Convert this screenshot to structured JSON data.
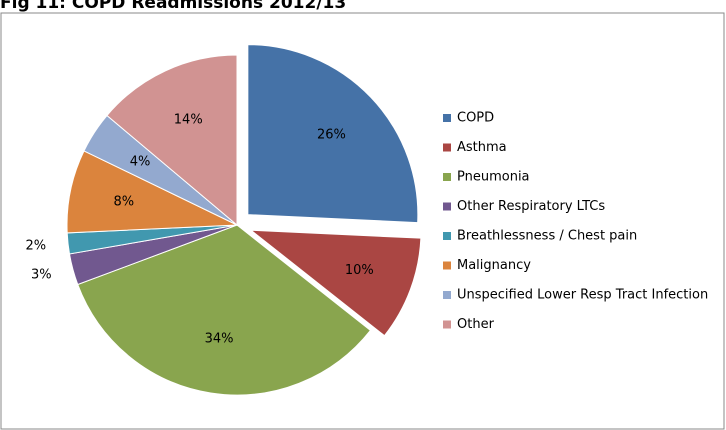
{
  "chart_data": {
    "type": "pie",
    "title": "Fig 11: COPD Readmissions 2012/13",
    "categories": [
      "COPD",
      "Asthma",
      "Pneumonia",
      "Other Respiratory LTCs",
      "Breathlessness / Chest pain",
      "Malignancy",
      "Unspecified Lower Resp Tract Infection",
      "Other"
    ],
    "values": [
      26,
      10,
      34,
      3,
      2,
      8,
      4,
      14
    ],
    "value_labels": [
      "26%",
      "10%",
      "34%",
      "3%",
      "2%",
      "8%",
      "4%",
      "14%"
    ],
    "colors": [
      "#4572a7",
      "#aa4643",
      "#89a54e",
      "#71588f",
      "#4198af",
      "#db843d",
      "#93a9cf",
      "#d19392"
    ],
    "exploded": [
      "COPD",
      "Asthma"
    ],
    "legend": "right"
  }
}
